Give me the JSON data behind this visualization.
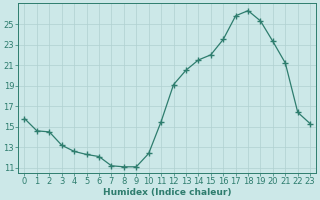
{
  "xlabel": "Humidex (Indice chaleur)",
  "x": [
    0,
    1,
    2,
    3,
    4,
    5,
    6,
    7,
    8,
    9,
    10,
    11,
    12,
    13,
    14,
    15,
    16,
    17,
    18,
    19,
    20,
    21,
    22,
    23
  ],
  "y": [
    15.8,
    14.6,
    14.5,
    13.2,
    12.6,
    12.3,
    12.1,
    11.2,
    11.1,
    11.1,
    12.4,
    15.5,
    19.1,
    20.5,
    21.5,
    22.0,
    23.5,
    25.8,
    26.3,
    25.3,
    23.3,
    21.2,
    16.4,
    15.3
  ],
  "line_color": "#2e7d6e",
  "marker": "+",
  "marker_size": 4,
  "bg_color": "#cce8e8",
  "grid_color": "#b0d0d0",
  "axis_color": "#2e7d6e",
  "text_color": "#2e7d6e",
  "ylim": [
    10.5,
    27.0
  ],
  "xlim": [
    -0.5,
    23.5
  ],
  "yticks": [
    11,
    13,
    15,
    17,
    19,
    21,
    23,
    25
  ],
  "xticks": [
    0,
    1,
    2,
    3,
    4,
    5,
    6,
    7,
    8,
    9,
    10,
    11,
    12,
    13,
    14,
    15,
    16,
    17,
    18,
    19,
    20,
    21,
    22,
    23
  ],
  "xlabel_fontsize": 6.5,
  "tick_fontsize": 6.0
}
